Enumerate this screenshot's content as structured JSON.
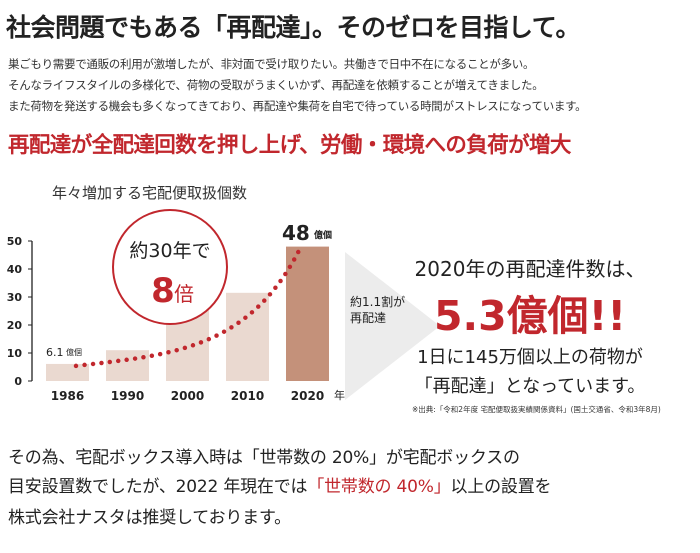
{
  "title": "社会問題でもある「再配達」。そのゼロを目指して。",
  "intro": [
    "巣ごもり需要で通販の利用が激増したが、非対面で受け取りたい。共働きで日中不在になることが多い。",
    "そんなライフスタイルの多様化で、荷物の受取がうまくいかず、再配達を依頼することが増えてきました。",
    "また荷物を発送する機会も多くなってきており、再配達や集荷を自宅で待っている時間がストレスになっています。"
  ],
  "headline": "再配達が全配達回数を押し上げ、労働・環境への負荷が増大",
  "chart_data": {
    "type": "bar",
    "title": "年々増加する宅配便取扱個数",
    "categories": [
      "1986",
      "1990",
      "2000",
      "2010",
      "2020"
    ],
    "values": [
      6.1,
      11,
      25.5,
      31.5,
      48
    ],
    "xlabel": "年",
    "ylabel": "",
    "ylim": [
      0,
      50
    ],
    "yticks": [
      "0",
      "10",
      "20",
      "30",
      "40",
      "50"
    ],
    "annotations": {
      "first_value": "6.1",
      "first_unit": "億個",
      "last_value": "48",
      "last_unit": "億個",
      "circle_line1": "約30年で",
      "circle_big": "8",
      "circle_unit": "倍"
    },
    "colors": {
      "bar": "#ead9d0",
      "highlight": "#c4917a",
      "dots": "#c1272d"
    }
  },
  "arrow_label": [
    "約1.1割が",
    "再配達"
  ],
  "redelivery": {
    "title": "2020年の再配達件数は、",
    "count": "5.3億個!!",
    "desc1": "1日に145万個以上の荷物が",
    "desc2": "「再配達」となっています。",
    "source": "※出典:「令和2年度 宅配便取扱実績関係資料」(国土交通省、令和3年8月)"
  },
  "footer": {
    "line1": "その為、宅配ボックス導入時は「世帯数の 20%」が宅配ボックスの",
    "line2_a": "目安設置数でしたが、2022 年現在では",
    "line2_red": "「世帯数の 40%」",
    "line2_b": "以上の設置を",
    "line3": "株式会社ナスタは推奨しております。"
  }
}
